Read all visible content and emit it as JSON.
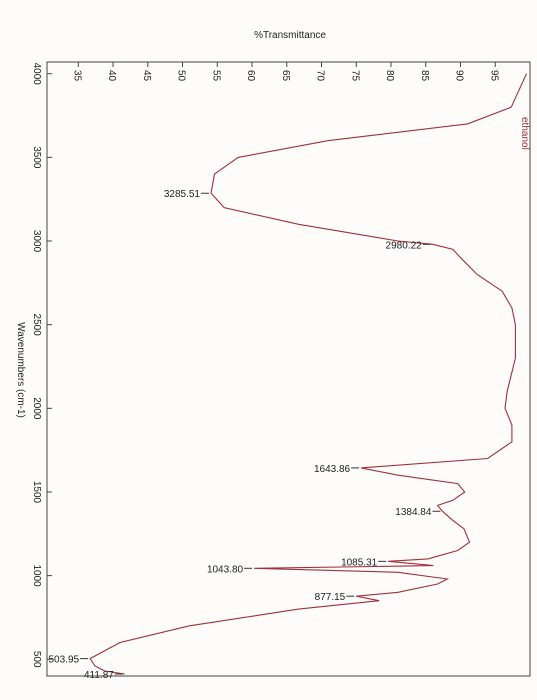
{
  "chart_data": {
    "type": "line",
    "title": "%Transmittance",
    "x_label": "Wavenumbers (cm-1)",
    "orientation": "rotated",
    "x": [
      4000,
      3800,
      3700,
      3600,
      3500,
      3400,
      3285.51,
      3200,
      3100,
      3000,
      2980.22,
      2950,
      2900,
      2800,
      2700,
      2600,
      2500,
      2300,
      2100,
      2000,
      1900,
      1800,
      1700,
      1643.86,
      1600,
      1550,
      1500,
      1450,
      1420,
      1384.84,
      1330,
      1280,
      1200,
      1150,
      1100,
      1085.31,
      1060,
      1043.8,
      1020,
      980,
      950,
      900,
      877.15,
      850,
      800,
      700,
      600,
      503.95,
      460,
      430,
      411.87
    ],
    "series": [
      {
        "name": "ethanol",
        "color": "#a0303a",
        "values": [
          99.5,
          97.3,
          91,
          71,
          58,
          54.6,
          54.1,
          56,
          66.7,
          81,
          86,
          88.9,
          90,
          92.4,
          96,
          97.4,
          97.9,
          97.9,
          96.7,
          96.4,
          97.4,
          97.4,
          93.9,
          75.7,
          81,
          89.6,
          90.6,
          88.9,
          86.7,
          87.4,
          88.9,
          90.5,
          91.3,
          89.6,
          85.3,
          79.6,
          86.1,
          60.3,
          81,
          88.1,
          86.7,
          81,
          75,
          78.3,
          66.7,
          51,
          41,
          36.7,
          37.4,
          38.8,
          41.7
        ]
      }
    ],
    "peaks": {
      "x": [
        3285.51,
        2980.22,
        1643.86,
        1384.84,
        1085.31,
        1043.8,
        877.15,
        503.95,
        411.87
      ],
      "values": [
        54.1,
        86,
        75.7,
        87.4,
        79.6,
        60.3,
        75,
        36.7,
        41.7
      ],
      "x_labels": [
        "3285.51",
        "2980.22",
        "1643.86",
        "1384.84",
        "1085.31",
        "1043.80",
        "877.15",
        "503.95",
        "411.87"
      ]
    },
    "xlim": [
      4070,
      400
    ],
    "xticks": [
      4000,
      3500,
      3000,
      2500,
      2000,
      1500,
      1000,
      500
    ],
    "ylim": [
      30.5,
      100
    ],
    "yticks": [
      35,
      40,
      45,
      50,
      55,
      60,
      65,
      70,
      75,
      80,
      85,
      90,
      95
    ]
  }
}
